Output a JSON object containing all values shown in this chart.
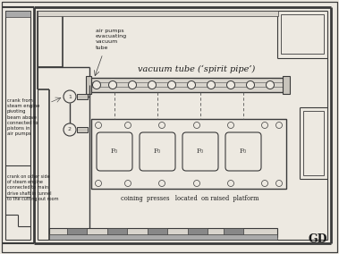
{
  "bg_color": "#ede9e1",
  "line_color": "#3a3a3a",
  "fill_light": "#d8d4cc",
  "fill_dark": "#aaaaaa",
  "fill_med": "#c8c4bc",
  "title_text": "vacuum tube (‘spirit pipe’)",
  "label_coining": "coining  presses   located  on raised  platform",
  "label_air_pumps": "air pumps\nevacuating\nvacuum\ntube",
  "label_crank": "crank from\nsteam engine\npivoting\nbeam above\nconnected to\npistons in\nair pumps",
  "label_crank2": "crank on other side\nof steam engine\nconnected to main\ndrive shaft in tunnel\nto the cutting out room",
  "label_gd": "GD",
  "press_labels": [
    "P₀",
    "P₀",
    "P₀",
    "P₀"
  ]
}
